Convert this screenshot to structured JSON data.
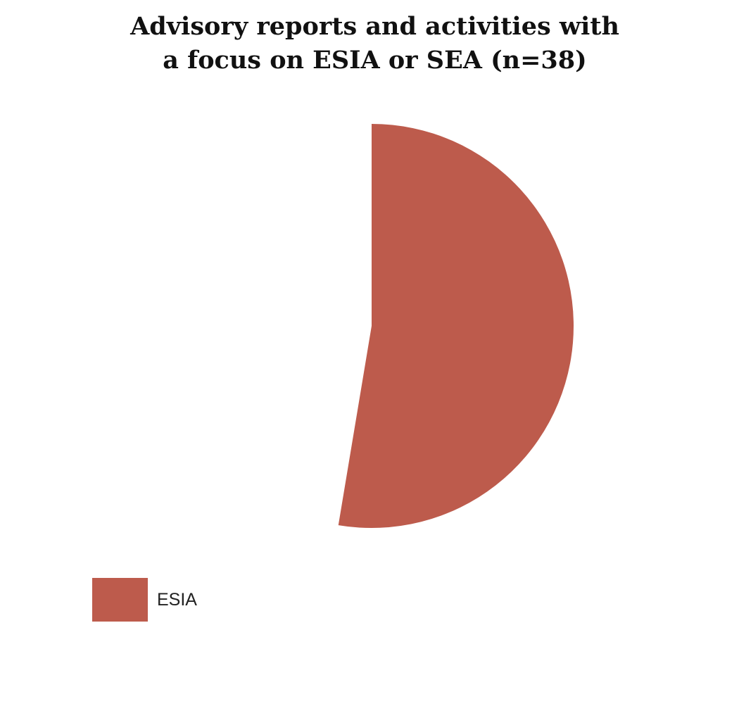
{
  "chart_data": {
    "type": "pie",
    "title": "Advisory reports and activities with\na focus on ESIA or SEA (n=38)",
    "categories": [
      "ESIA"
    ],
    "values": [
      20
    ],
    "total": 38,
    "colors": [
      "#bd5b4c"
    ],
    "legend_position": "bottom-left"
  }
}
